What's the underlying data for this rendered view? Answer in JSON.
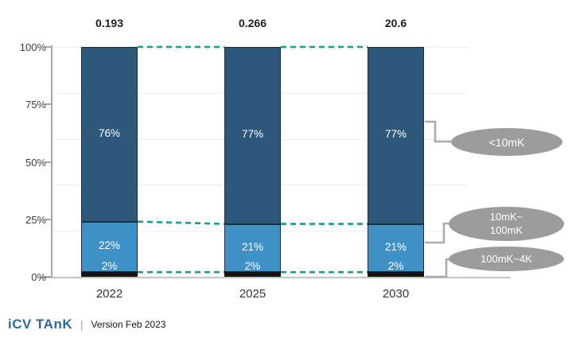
{
  "chart_data": {
    "type": "bar",
    "subtype": "stacked-percent-column",
    "title": "",
    "categories": [
      "2022",
      "2025",
      "2030"
    ],
    "totals": [
      "0.193",
      "0.266",
      "20.6"
    ],
    "series": [
      {
        "name": "100mK~4K",
        "color": "#141414",
        "values": [
          2,
          2,
          2
        ],
        "labels": [
          "2%",
          "2%",
          "2%"
        ]
      },
      {
        "name": "10mK~100mK",
        "color": "#3e92c7",
        "values": [
          22,
          21,
          21
        ],
        "labels": [
          "22%",
          "21%",
          "21%"
        ]
      },
      {
        "name": "<10mK",
        "color": "#2e5879",
        "values": [
          76,
          77,
          77
        ],
        "labels": [
          "76%",
          "77%",
          "77%"
        ]
      }
    ],
    "y_axis": {
      "ticks": [
        "0%",
        "25%",
        "50%",
        "75%",
        "100%"
      ],
      "tick_values": [
        0,
        25,
        50,
        75,
        100
      ],
      "grid_values": [
        20,
        40,
        60,
        80,
        100
      ],
      "range": [
        0,
        100
      ],
      "grid": true
    },
    "legend": {
      "position": "right",
      "items": [
        "<10mK",
        "10mK~\n100mK",
        "100mK~4K"
      ]
    },
    "annotation_line_color": "#0ba38e"
  },
  "colors": {
    "dark_blue": "#2e5879",
    "light_blue": "#3e92c7",
    "black_segment": "#141414",
    "dashed_connector": "#0ba38e",
    "legend_bubble": "#9c9c9c",
    "callout_line": "#acacac",
    "logo_blue": "#2b6a9e"
  },
  "footer": {
    "logo": "iCV TAnK",
    "divider": "|",
    "version": "Version Feb 2023"
  }
}
